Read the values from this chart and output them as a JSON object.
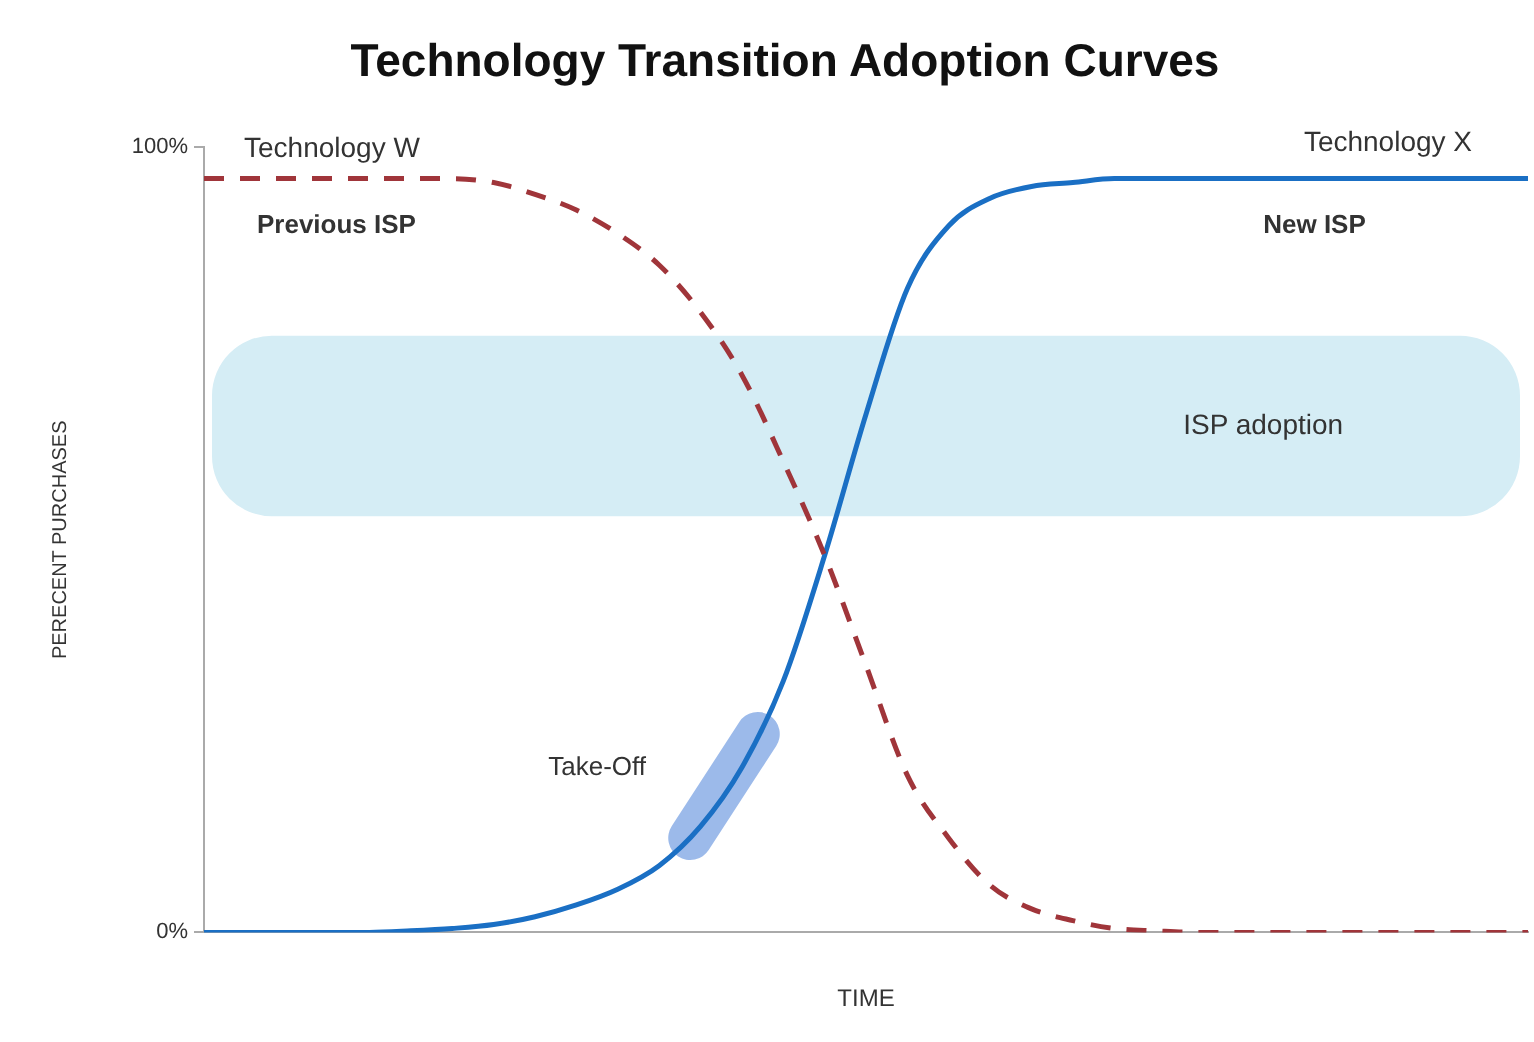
{
  "chart_data": {
    "type": "line",
    "title": "Technology Transition Adoption Curves",
    "xlabel": "TIME",
    "ylabel": "PERECENT PURCHASES",
    "categories": [
      null,
      null,
      null,
      null,
      null,
      null,
      null,
      null,
      null,
      null,
      null,
      null,
      null,
      null,
      null,
      null,
      null,
      null,
      null,
      null,
      null,
      null,
      null,
      null,
      null,
      null,
      null,
      null,
      null,
      null,
      null,
      null,
      null
    ],
    "series": [
      {
        "name": "Technology W",
        "color": "#a0353a",
        "line_style": "dashed",
        "values": [
          96,
          96,
          96,
          96,
          96,
          96,
          96,
          95.5,
          94,
          92,
          89,
          85,
          79,
          71,
          60,
          48,
          34,
          20,
          12,
          6,
          3,
          1.5,
          0.5,
          0.2,
          0,
          0,
          0,
          0,
          0,
          0,
          0,
          0,
          0
        ]
      },
      {
        "name": "Technology X",
        "color": "#1a6fc4",
        "line_style": "solid",
        "values": [
          0,
          0,
          0,
          0,
          0,
          0.2,
          0.5,
          1,
          2,
          3.5,
          5.5,
          8.5,
          13.5,
          21,
          32,
          48,
          66,
          82,
          90,
          93.5,
          95,
          95.5,
          96,
          96,
          96,
          96,
          96,
          96,
          96,
          96,
          96,
          96,
          96
        ]
      }
    ],
    "ylim": [
      0,
      100
    ],
    "yticks": [
      {
        "value": 0,
        "label": "0%"
      },
      {
        "value": 100,
        "label": "100%"
      }
    ],
    "bands": [
      {
        "axis": "y",
        "from": 53,
        "to": 76,
        "label": "ISP adoption",
        "color": "#d5edf5"
      }
    ],
    "annotations": [
      "Previous ISP",
      "New ISP",
      "Take-Off"
    ],
    "grid": false,
    "legend": false,
    "marker": "none"
  }
}
